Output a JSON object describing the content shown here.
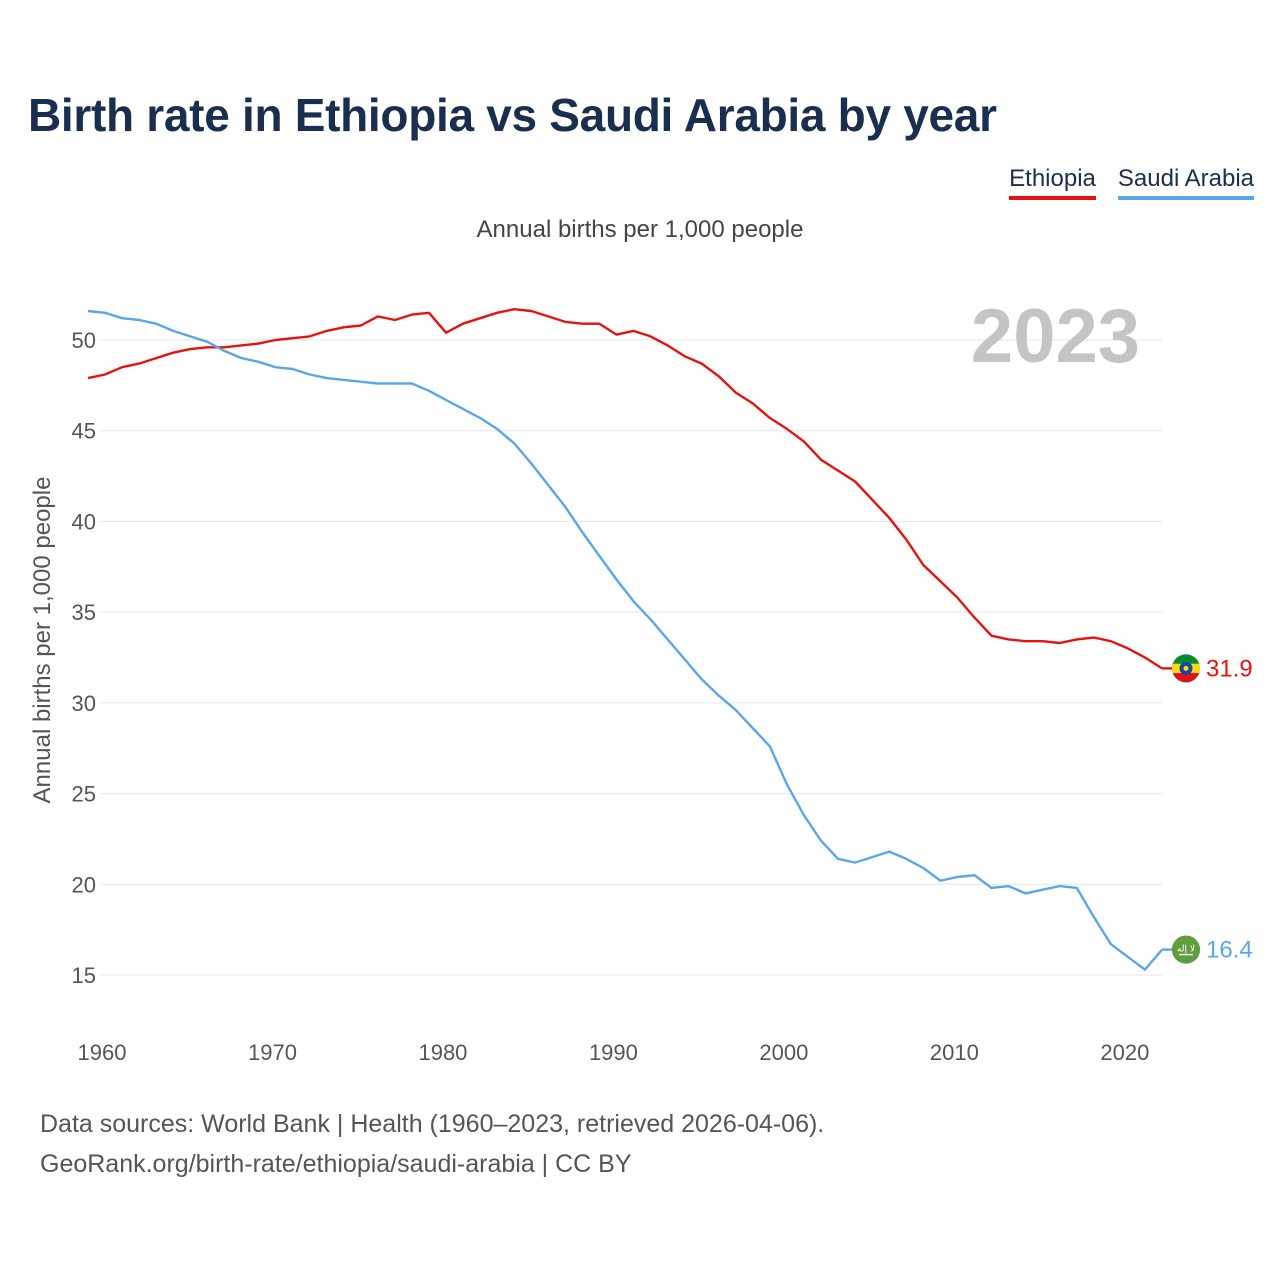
{
  "chart_data": {
    "type": "line",
    "title": "Birth rate in Ethiopia vs Saudi Arabia by year",
    "subtitle": "Annual births per 1,000 people",
    "ylabel": "Annual births per 1,000 people",
    "xlabel": "",
    "year_badge": "2023",
    "x": [
      1960,
      1961,
      1962,
      1963,
      1964,
      1965,
      1966,
      1967,
      1968,
      1969,
      1970,
      1971,
      1972,
      1973,
      1974,
      1975,
      1976,
      1977,
      1978,
      1979,
      1980,
      1981,
      1982,
      1983,
      1984,
      1985,
      1986,
      1987,
      1988,
      1989,
      1990,
      1991,
      1992,
      1993,
      1994,
      1995,
      1996,
      1997,
      1998,
      1999,
      2000,
      2001,
      2002,
      2003,
      2004,
      2005,
      2006,
      2007,
      2008,
      2009,
      2010,
      2011,
      2012,
      2013,
      2014,
      2015,
      2016,
      2017,
      2018,
      2019,
      2020,
      2021,
      2022,
      2023
    ],
    "xlim": [
      1960,
      2023
    ],
    "ylim": [
      12.5,
      52.5
    ],
    "xticks": [
      1960,
      1970,
      1980,
      1990,
      2000,
      2010,
      2020
    ],
    "xtick_labels": [
      "1960",
      "1970",
      "1980",
      "1990",
      "2000",
      "2010",
      "2020"
    ],
    "yticks": [
      15,
      20,
      25,
      30,
      35,
      40,
      45,
      50
    ],
    "ytick_labels": [
      "15",
      "20",
      "25",
      "30",
      "35",
      "40",
      "45",
      "50"
    ],
    "grid": true,
    "legend_position": "top-right",
    "series": [
      {
        "name": "Ethiopia",
        "color": "#e8120c",
        "flag_icon": "ethiopia-flag-icon",
        "end_label": "31.9",
        "values": [
          47.9,
          48.1,
          48.5,
          48.7,
          49.0,
          49.3,
          49.5,
          49.6,
          49.6,
          49.7,
          49.8,
          50.0,
          50.1,
          50.2,
          50.5,
          50.7,
          50.8,
          51.3,
          51.1,
          51.4,
          51.5,
          50.4,
          50.9,
          51.2,
          51.5,
          51.7,
          51.6,
          51.3,
          51.0,
          50.9,
          50.9,
          50.3,
          50.5,
          50.2,
          49.7,
          49.1,
          48.7,
          48.0,
          47.1,
          46.5,
          45.7,
          45.1,
          44.4,
          43.4,
          42.8,
          42.2,
          41.2,
          40.2,
          39.0,
          37.6,
          36.7,
          35.8,
          34.7,
          33.7,
          33.5,
          33.4,
          33.4,
          33.3,
          33.5,
          33.6,
          33.4,
          33.0,
          32.5,
          31.9
        ]
      },
      {
        "name": "Saudi Arabia",
        "color": "#5aa6e8",
        "flag_icon": "saudi-arabia-flag-icon",
        "end_label": "16.4",
        "values": [
          51.6,
          51.5,
          51.2,
          51.1,
          50.9,
          50.5,
          50.2,
          49.9,
          49.4,
          49.0,
          48.8,
          48.5,
          48.4,
          48.1,
          47.9,
          47.8,
          47.7,
          47.6,
          47.6,
          47.6,
          47.2,
          46.7,
          46.2,
          45.7,
          45.1,
          44.3,
          43.2,
          42.0,
          40.8,
          39.4,
          38.1,
          36.8,
          35.6,
          34.6,
          33.5,
          32.4,
          31.3,
          30.4,
          29.6,
          28.6,
          27.6,
          25.5,
          23.8,
          22.4,
          21.4,
          21.2,
          21.5,
          21.8,
          21.4,
          20.9,
          20.2,
          20.4,
          20.5,
          19.8,
          19.9,
          19.5,
          19.7,
          19.9,
          19.8,
          18.2,
          16.7,
          16.0,
          15.3,
          16.4
        ]
      }
    ]
  },
  "footer": {
    "line1": "Data sources: World Bank | Health (1960–2023, retrieved 2026-04-06).",
    "line2": "GeoRank.org/birth-rate/ethiopia/saudi-arabia | CC BY"
  },
  "saudi_flag_script": "لا إله"
}
